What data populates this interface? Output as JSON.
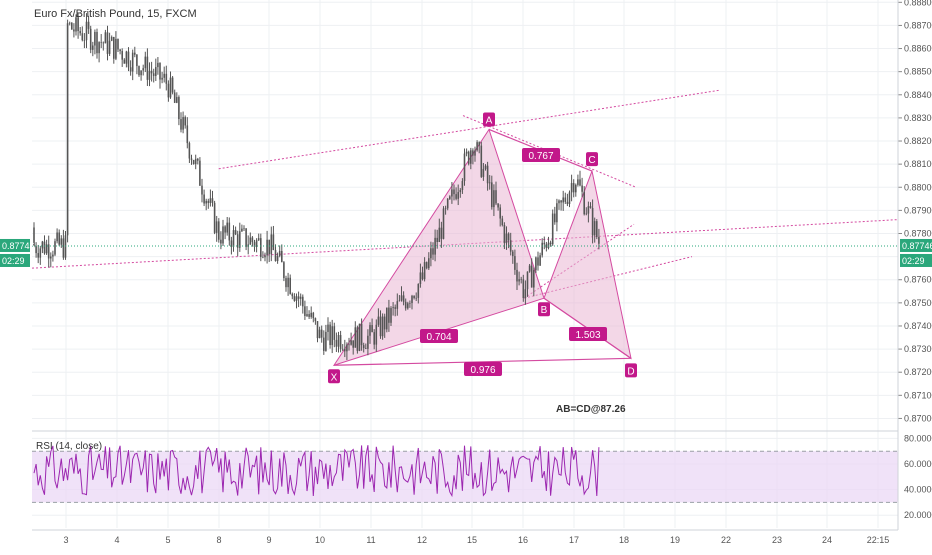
{
  "header": {
    "title": "Euro Fx/British Pound, 15, FXCM"
  },
  "price_axis": {
    "ticks": [
      "0.88800",
      "0.88700",
      "0.88600",
      "0.88500",
      "0.88400",
      "0.88300",
      "0.88200",
      "0.88100",
      "0.88000",
      "0.87900",
      "0.87800",
      "0.87600",
      "0.87500",
      "0.87400",
      "0.87300",
      "0.87200",
      "0.87100",
      "0.87000"
    ],
    "current_price": "0.87746",
    "countdown": "02:29"
  },
  "rsi": {
    "label": "RSI (14, close)",
    "ticks": [
      "80.0000",
      "60.0000",
      "40.0000",
      "20.0000"
    ],
    "band_upper": 70,
    "band_lower": 30
  },
  "time_axis": {
    "ticks": [
      "3",
      "4",
      "5",
      "8",
      "9",
      "10",
      "11",
      "12",
      "15",
      "16",
      "17",
      "18",
      "19",
      "22",
      "23",
      "24",
      "22:15"
    ]
  },
  "pattern": {
    "points": {
      "X": "X",
      "A": "A",
      "B": "B",
      "C": "C",
      "D": "D"
    },
    "ratios": {
      "xa_b": "0.704",
      "ab_c": "0.767",
      "bc_d": "1.503",
      "xd": "0.976"
    },
    "abcd_label": "AB=CD@87.26"
  },
  "colors": {
    "candle": "#555555",
    "pattern_fill": "#e9b6d4",
    "pattern_stroke": "#d44aa0",
    "label_bg": "#c2188a",
    "price_tag": "#2aa77b",
    "rsi_line": "#9c27b0",
    "rsi_band": "#ead6f5",
    "grid": "#eef0f3"
  },
  "chart_data": [
    {
      "type": "candlestick",
      "title": "Euro Fx/British Pound, 15, FXCM",
      "x_ticks": [
        "3",
        "4",
        "5",
        "8",
        "9",
        "10",
        "11",
        "12",
        "15",
        "16",
        "17",
        "18",
        "19",
        "22",
        "23",
        "24",
        "22:15"
      ],
      "ylim": [
        0.8695,
        0.888
      ],
      "price_path_approx": [
        {
          "x": "3",
          "y": 0.887
        },
        {
          "x": "4",
          "y": 0.886
        },
        {
          "x": "5",
          "y": 0.8845
        },
        {
          "x": "8",
          "y": 0.878
        },
        {
          "x": "9",
          "y": 0.8775
        },
        {
          "x": "10",
          "y": 0.8735
        },
        {
          "x": "11",
          "y": 0.8735
        },
        {
          "x": "12",
          "y": 0.876
        },
        {
          "x": "15",
          "y": 0.882
        },
        {
          "x": "16",
          "y": 0.8755
        },
        {
          "x": "17",
          "y": 0.8805
        },
        {
          "x": "17.5",
          "y": 0.87746
        }
      ],
      "last_price": 0.87746,
      "pattern_points": [
        {
          "label": "X",
          "x": "10",
          "y": 0.8723
        },
        {
          "label": "A",
          "x": "15",
          "y": 0.8825
        },
        {
          "label": "B",
          "x": "16",
          "y": 0.8752
        },
        {
          "label": "C",
          "x": "17",
          "y": 0.8807
        },
        {
          "label": "D",
          "x": "18",
          "y": 0.8726
        }
      ]
    },
    {
      "type": "line",
      "title": "RSI (14, close)",
      "ylim": [
        10,
        85
      ],
      "bands": [
        70,
        30
      ],
      "y_ticks": [
        "80.0000",
        "60.0000",
        "40.0000",
        "20.0000"
      ]
    }
  ]
}
